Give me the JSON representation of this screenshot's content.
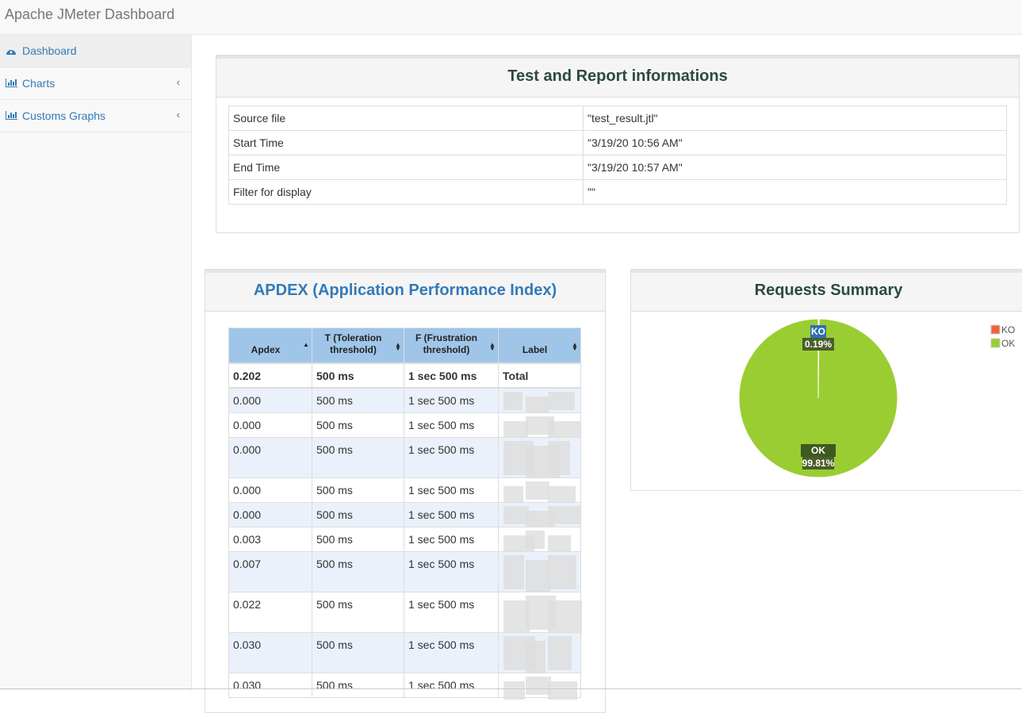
{
  "navbar": {
    "brand": "Apache JMeter Dashboard"
  },
  "sidebar": {
    "items": [
      "Dashboard",
      "Charts",
      "Customs Graphs"
    ]
  },
  "info": {
    "title": "Test and Report informations",
    "rows": [
      [
        "Source file",
        "\"test_result.jtl\""
      ],
      [
        "Start Time",
        "\"3/19/20 10:56 AM\""
      ],
      [
        "End Time",
        "\"3/19/20 10:57 AM\""
      ],
      [
        "Filter for display",
        "\"\""
      ]
    ]
  },
  "apdex": {
    "title": "APDEX (Application Performance Index)",
    "columns": [
      "Apdex",
      "T (Toleration threshold)",
      "F (Frustration threshold)",
      "Label"
    ],
    "total": [
      "0.202",
      "500 ms",
      "1 sec 500 ms",
      "Total"
    ],
    "rows": [
      [
        "0.000",
        "500 ms",
        "1 sec 500 ms"
      ],
      [
        "0.000",
        "500 ms",
        "1 sec 500 ms"
      ],
      [
        "0.000",
        "500 ms",
        "1 sec 500 ms"
      ],
      [
        "0.000",
        "500 ms",
        "1 sec 500 ms"
      ],
      [
        "0.000",
        "500 ms",
        "1 sec 500 ms"
      ],
      [
        "0.003",
        "500 ms",
        "1 sec 500 ms"
      ],
      [
        "0.007",
        "500 ms",
        "1 sec 500 ms"
      ],
      [
        "0.022",
        "500 ms",
        "1 sec 500 ms"
      ],
      [
        "0.030",
        "500 ms",
        "1 sec 500 ms"
      ],
      [
        "0.030",
        "500 ms",
        "1 sec 500 ms"
      ]
    ]
  },
  "chart_data": {
    "type": "pie",
    "title": "Requests Summary",
    "categories": [
      "KO",
      "OK"
    ],
    "values": [
      0.19,
      99.81
    ],
    "value_labels": [
      "0.19%",
      "99.81%"
    ],
    "colors": [
      "#f0643c",
      "#9acd32"
    ],
    "legend": "top-right"
  }
}
